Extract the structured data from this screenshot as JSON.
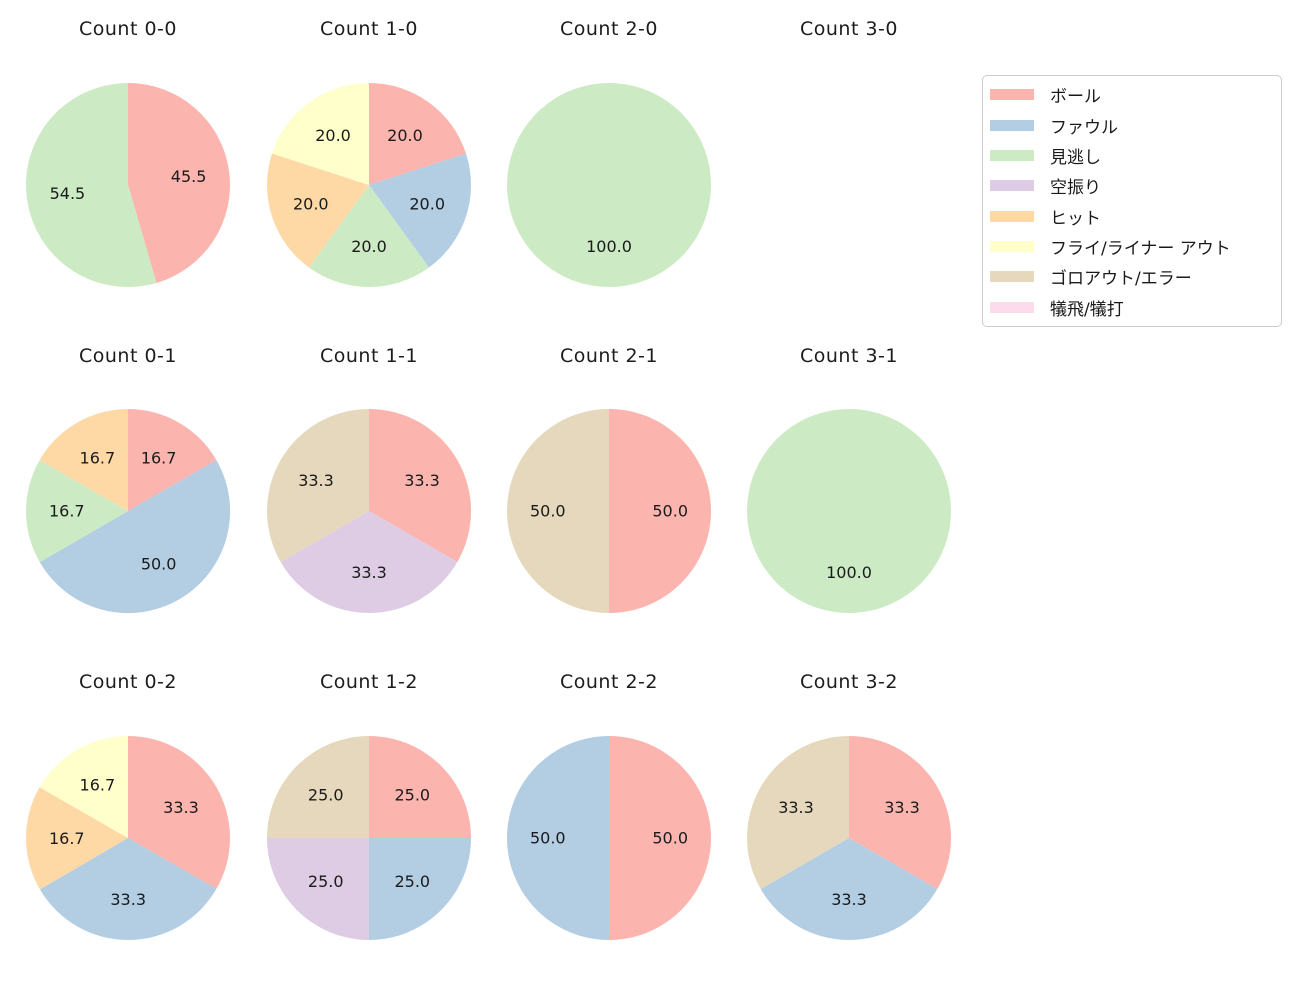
{
  "figure": {
    "background": "#ffffff",
    "text_color": "#1a1a1a"
  },
  "legend": {
    "border_color": "#cccccc",
    "items": [
      {
        "key": "ball",
        "label": "ボール",
        "color": "#fbb4ae"
      },
      {
        "key": "foul",
        "label": "ファウル",
        "color": "#b3cde3"
      },
      {
        "key": "called-strike",
        "label": "見逃し",
        "color": "#ccebc5"
      },
      {
        "key": "swinging-strike",
        "label": "空振り",
        "color": "#decbe4"
      },
      {
        "key": "hit",
        "label": "ヒット",
        "color": "#fed9a6"
      },
      {
        "key": "fly-liner-out",
        "label": "フライ/ライナー アウト",
        "color": "#ffffcc"
      },
      {
        "key": "groundout-error",
        "label": "ゴロアウト/エラー",
        "color": "#e5d8bd"
      },
      {
        "key": "sac-fly-bunt",
        "label": "犠飛/犠打",
        "color": "#fddaec"
      }
    ]
  },
  "pie_layout": {
    "startangle_deg": 90,
    "direction": "clockwise",
    "pctdistance": 0.6,
    "grid": {
      "rows": 3,
      "cols": 4
    },
    "legend_position": "upper right"
  },
  "chart_data": [
    {
      "type": "pie",
      "title": "Count 0-0",
      "row": 0,
      "col": 0,
      "slices": [
        {
          "label": "ボール",
          "value": 45.5,
          "pct": "45.5"
        },
        {
          "label": "見逃し",
          "value": 54.5,
          "pct": "54.5"
        }
      ]
    },
    {
      "type": "pie",
      "title": "Count 1-0",
      "row": 0,
      "col": 1,
      "slices": [
        {
          "label": "ボール",
          "value": 20.0,
          "pct": "20.0"
        },
        {
          "label": "ファウル",
          "value": 20.0,
          "pct": "20.0"
        },
        {
          "label": "見逃し",
          "value": 20.0,
          "pct": "20.0"
        },
        {
          "label": "ヒット",
          "value": 20.0,
          "pct": "20.0"
        },
        {
          "label": "フライ/ライナー アウト",
          "value": 20.0,
          "pct": "20.0"
        }
      ]
    },
    {
      "type": "pie",
      "title": "Count 2-0",
      "row": 0,
      "col": 2,
      "slices": [
        {
          "label": "見逃し",
          "value": 100.0,
          "pct": "100.0"
        }
      ]
    },
    {
      "type": "pie",
      "title": "Count 3-0",
      "row": 0,
      "col": 3,
      "slices": []
    },
    {
      "type": "pie",
      "title": "Count 0-1",
      "row": 1,
      "col": 0,
      "slices": [
        {
          "label": "ボール",
          "value": 16.7,
          "pct": "16.7"
        },
        {
          "label": "ファウル",
          "value": 50.0,
          "pct": "50.0"
        },
        {
          "label": "見逃し",
          "value": 16.7,
          "pct": "16.7"
        },
        {
          "label": "ヒット",
          "value": 16.7,
          "pct": "16.7"
        }
      ]
    },
    {
      "type": "pie",
      "title": "Count 1-1",
      "row": 1,
      "col": 1,
      "slices": [
        {
          "label": "ボール",
          "value": 33.3,
          "pct": "33.3"
        },
        {
          "label": "空振り",
          "value": 33.3,
          "pct": "33.3"
        },
        {
          "label": "ゴロアウト/エラー",
          "value": 33.3,
          "pct": "33.3"
        }
      ]
    },
    {
      "type": "pie",
      "title": "Count 2-1",
      "row": 1,
      "col": 2,
      "slices": [
        {
          "label": "ボール",
          "value": 50.0,
          "pct": "50.0"
        },
        {
          "label": "ゴロアウト/エラー",
          "value": 50.0,
          "pct": "50.0"
        }
      ]
    },
    {
      "type": "pie",
      "title": "Count 3-1",
      "row": 1,
      "col": 3,
      "slices": [
        {
          "label": "見逃し",
          "value": 100.0,
          "pct": "100.0"
        }
      ]
    },
    {
      "type": "pie",
      "title": "Count 0-2",
      "row": 2,
      "col": 0,
      "slices": [
        {
          "label": "ボール",
          "value": 33.3,
          "pct": "33.3"
        },
        {
          "label": "ファウル",
          "value": 33.3,
          "pct": "33.3"
        },
        {
          "label": "ヒット",
          "value": 16.7,
          "pct": "16.7"
        },
        {
          "label": "フライ/ライナー アウト",
          "value": 16.7,
          "pct": "16.7"
        }
      ]
    },
    {
      "type": "pie",
      "title": "Count 1-2",
      "row": 2,
      "col": 1,
      "slices": [
        {
          "label": "ボール",
          "value": 25.0,
          "pct": "25.0"
        },
        {
          "label": "ファウル",
          "value": 25.0,
          "pct": "25.0"
        },
        {
          "label": "空振り",
          "value": 25.0,
          "pct": "25.0"
        },
        {
          "label": "ゴロアウト/エラー",
          "value": 25.0,
          "pct": "25.0"
        }
      ]
    },
    {
      "type": "pie",
      "title": "Count 2-2",
      "row": 2,
      "col": 2,
      "slices": [
        {
          "label": "ボール",
          "value": 50.0,
          "pct": "50.0"
        },
        {
          "label": "ファウル",
          "value": 50.0,
          "pct": "50.0"
        }
      ]
    },
    {
      "type": "pie",
      "title": "Count 3-2",
      "row": 2,
      "col": 3,
      "slices": [
        {
          "label": "ボール",
          "value": 33.3,
          "pct": "33.3"
        },
        {
          "label": "ファウル",
          "value": 33.3,
          "pct": "33.3"
        },
        {
          "label": "ゴロアウト/エラー",
          "value": 33.3,
          "pct": "33.3"
        }
      ]
    }
  ]
}
